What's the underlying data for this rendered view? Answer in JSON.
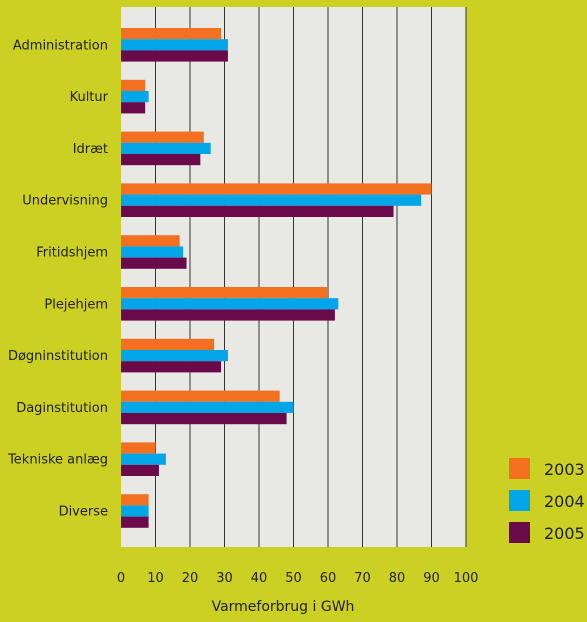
{
  "colors": {
    "background": "#cbd022",
    "plot_area": "#e8e8e4",
    "gridline": "#333333",
    "series": [
      "#f37021",
      "#00a6e8",
      "#6b0a4a"
    ]
  },
  "chart_data": {
    "type": "bar",
    "orientation": "horizontal",
    "categories": [
      "Administration",
      "Kultur",
      "Idræt",
      "Undervisning",
      "Fritidshjem",
      "Plejehjem",
      "Døgninstitution",
      "Daginstitution",
      "Tekniske anlæg",
      "Diverse"
    ],
    "series": [
      {
        "name": "2003",
        "values": [
          29,
          7,
          24,
          90,
          17,
          60,
          27,
          46,
          10,
          8
        ]
      },
      {
        "name": "2004",
        "values": [
          31,
          8,
          26,
          87,
          18,
          63,
          31,
          50,
          13,
          8
        ]
      },
      {
        "name": "2005",
        "values": [
          31,
          7,
          23,
          79,
          19,
          62,
          29,
          48,
          11,
          8
        ]
      }
    ],
    "xlabel": "Varmeforbrug i GWh",
    "xlim": [
      0,
      100
    ],
    "xticks": [
      0,
      10,
      20,
      30,
      40,
      50,
      60,
      70,
      80,
      90,
      100
    ],
    "grid": "vertical",
    "legend_position": "right-bottom"
  }
}
